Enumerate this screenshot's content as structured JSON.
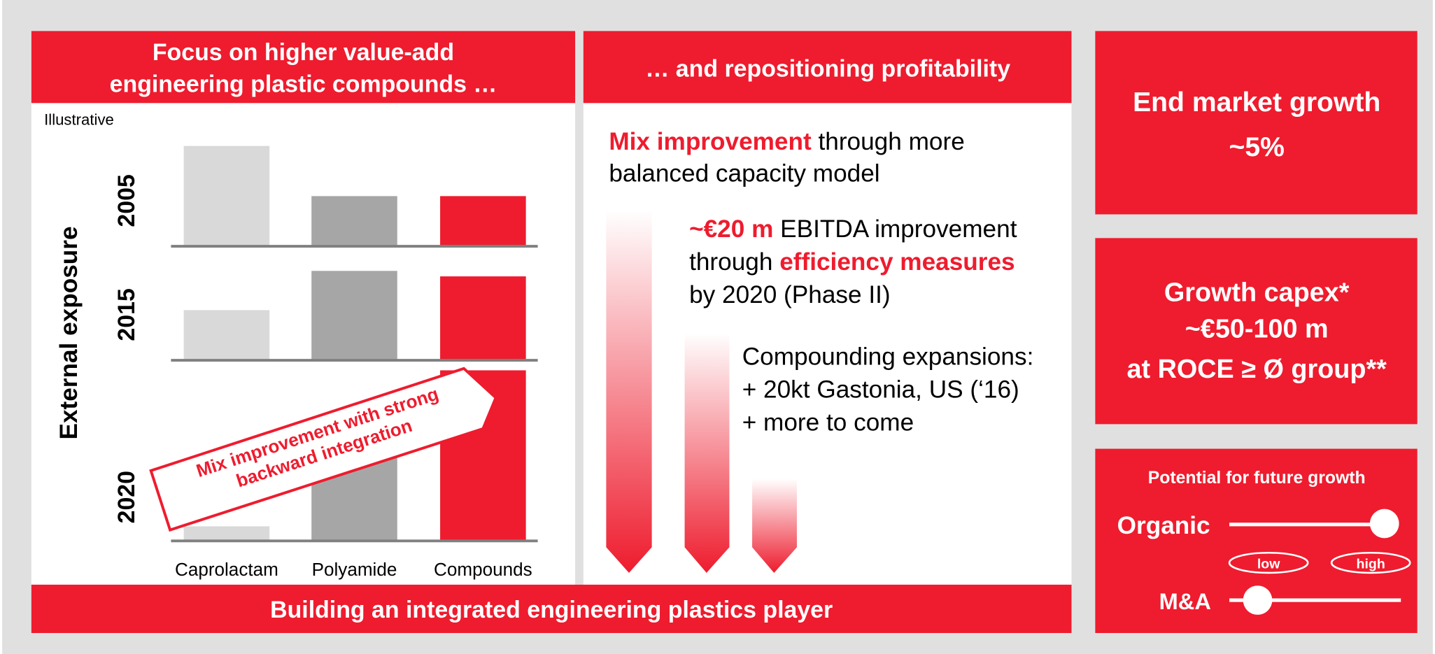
{
  "left_panel": {
    "title": [
      "Focus on higher value-add",
      "engineering plastic compounds …"
    ],
    "note": "Illustrative",
    "y_label": "External exposure",
    "banner": [
      "Mix improvement with strong",
      "backward integration"
    ]
  },
  "chart_data": {
    "type": "bar",
    "categories": [
      "Caprolactam",
      "Polyamide",
      "Compounds"
    ],
    "colors": [
      "#d9d9d9",
      "#a6a6a6",
      "#ee1c2e"
    ],
    "series": [
      {
        "name": "2005",
        "values": [
          110,
          55,
          55
        ]
      },
      {
        "name": "2015",
        "values": [
          55,
          98,
          92
        ]
      },
      {
        "name": "2020",
        "values": [
          16,
          110,
          187
        ]
      }
    ],
    "ylim": [
      0,
      200
    ]
  },
  "middle_panel": {
    "title": "… and repositioning profitability",
    "paragraphs": [
      [
        [
          "Mix improvement",
          " through more"
        ],
        [
          "balanced capacity model"
        ]
      ],
      [
        [
          "~€20 m",
          " EBITDA improvement"
        ],
        [
          "through ",
          "efficiency measures"
        ],
        [
          "by 2020 (Phase II)"
        ]
      ],
      [
        [
          "Compounding expansions:"
        ],
        [
          "+ 20kt Gastonia, US (‘16)"
        ],
        [
          "+ more to come"
        ]
      ]
    ]
  },
  "footer": "Building an integrated engineering plastics player",
  "right_panel": {
    "market": [
      "End market growth",
      "~5%"
    ],
    "capex": [
      "Growth capex*",
      "~€50-100 m",
      "at ROCE ≥ Ø group**"
    ],
    "potential": {
      "title": "Potential for future growth",
      "organic": "Organic",
      "low": "low",
      "high": "high",
      "ma": "M&A"
    }
  }
}
